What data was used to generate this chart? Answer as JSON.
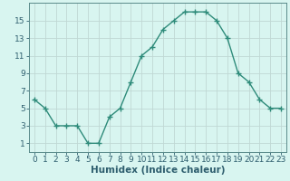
{
  "x": [
    0,
    1,
    2,
    3,
    4,
    5,
    6,
    7,
    8,
    9,
    10,
    11,
    12,
    13,
    14,
    15,
    16,
    17,
    18,
    19,
    20,
    21,
    22,
    23
  ],
  "y": [
    6,
    5,
    3,
    3,
    3,
    1,
    1,
    4,
    5,
    8,
    11,
    12,
    14,
    15,
    16,
    16,
    16,
    15,
    13,
    9,
    8,
    6,
    5,
    5
  ],
  "xlabel": "Humidex (Indice chaleur)",
  "line_color": "#2e8b7a",
  "bg_color": "#d8f5f0",
  "grid_major_color": "#c0d8d4",
  "grid_minor_color": "#e0f0ee",
  "spine_color": "#5a8a8a",
  "xlim": [
    -0.5,
    23.5
  ],
  "ylim": [
    0,
    17
  ],
  "yticks": [
    1,
    3,
    5,
    7,
    9,
    11,
    13,
    15
  ],
  "xticks": [
    0,
    1,
    2,
    3,
    4,
    5,
    6,
    7,
    8,
    9,
    10,
    11,
    12,
    13,
    14,
    15,
    16,
    17,
    18,
    19,
    20,
    21,
    22,
    23
  ],
  "font_color": "#2e5e6e",
  "xlabel_fontsize": 7.5,
  "tick_fontsize": 6.5
}
